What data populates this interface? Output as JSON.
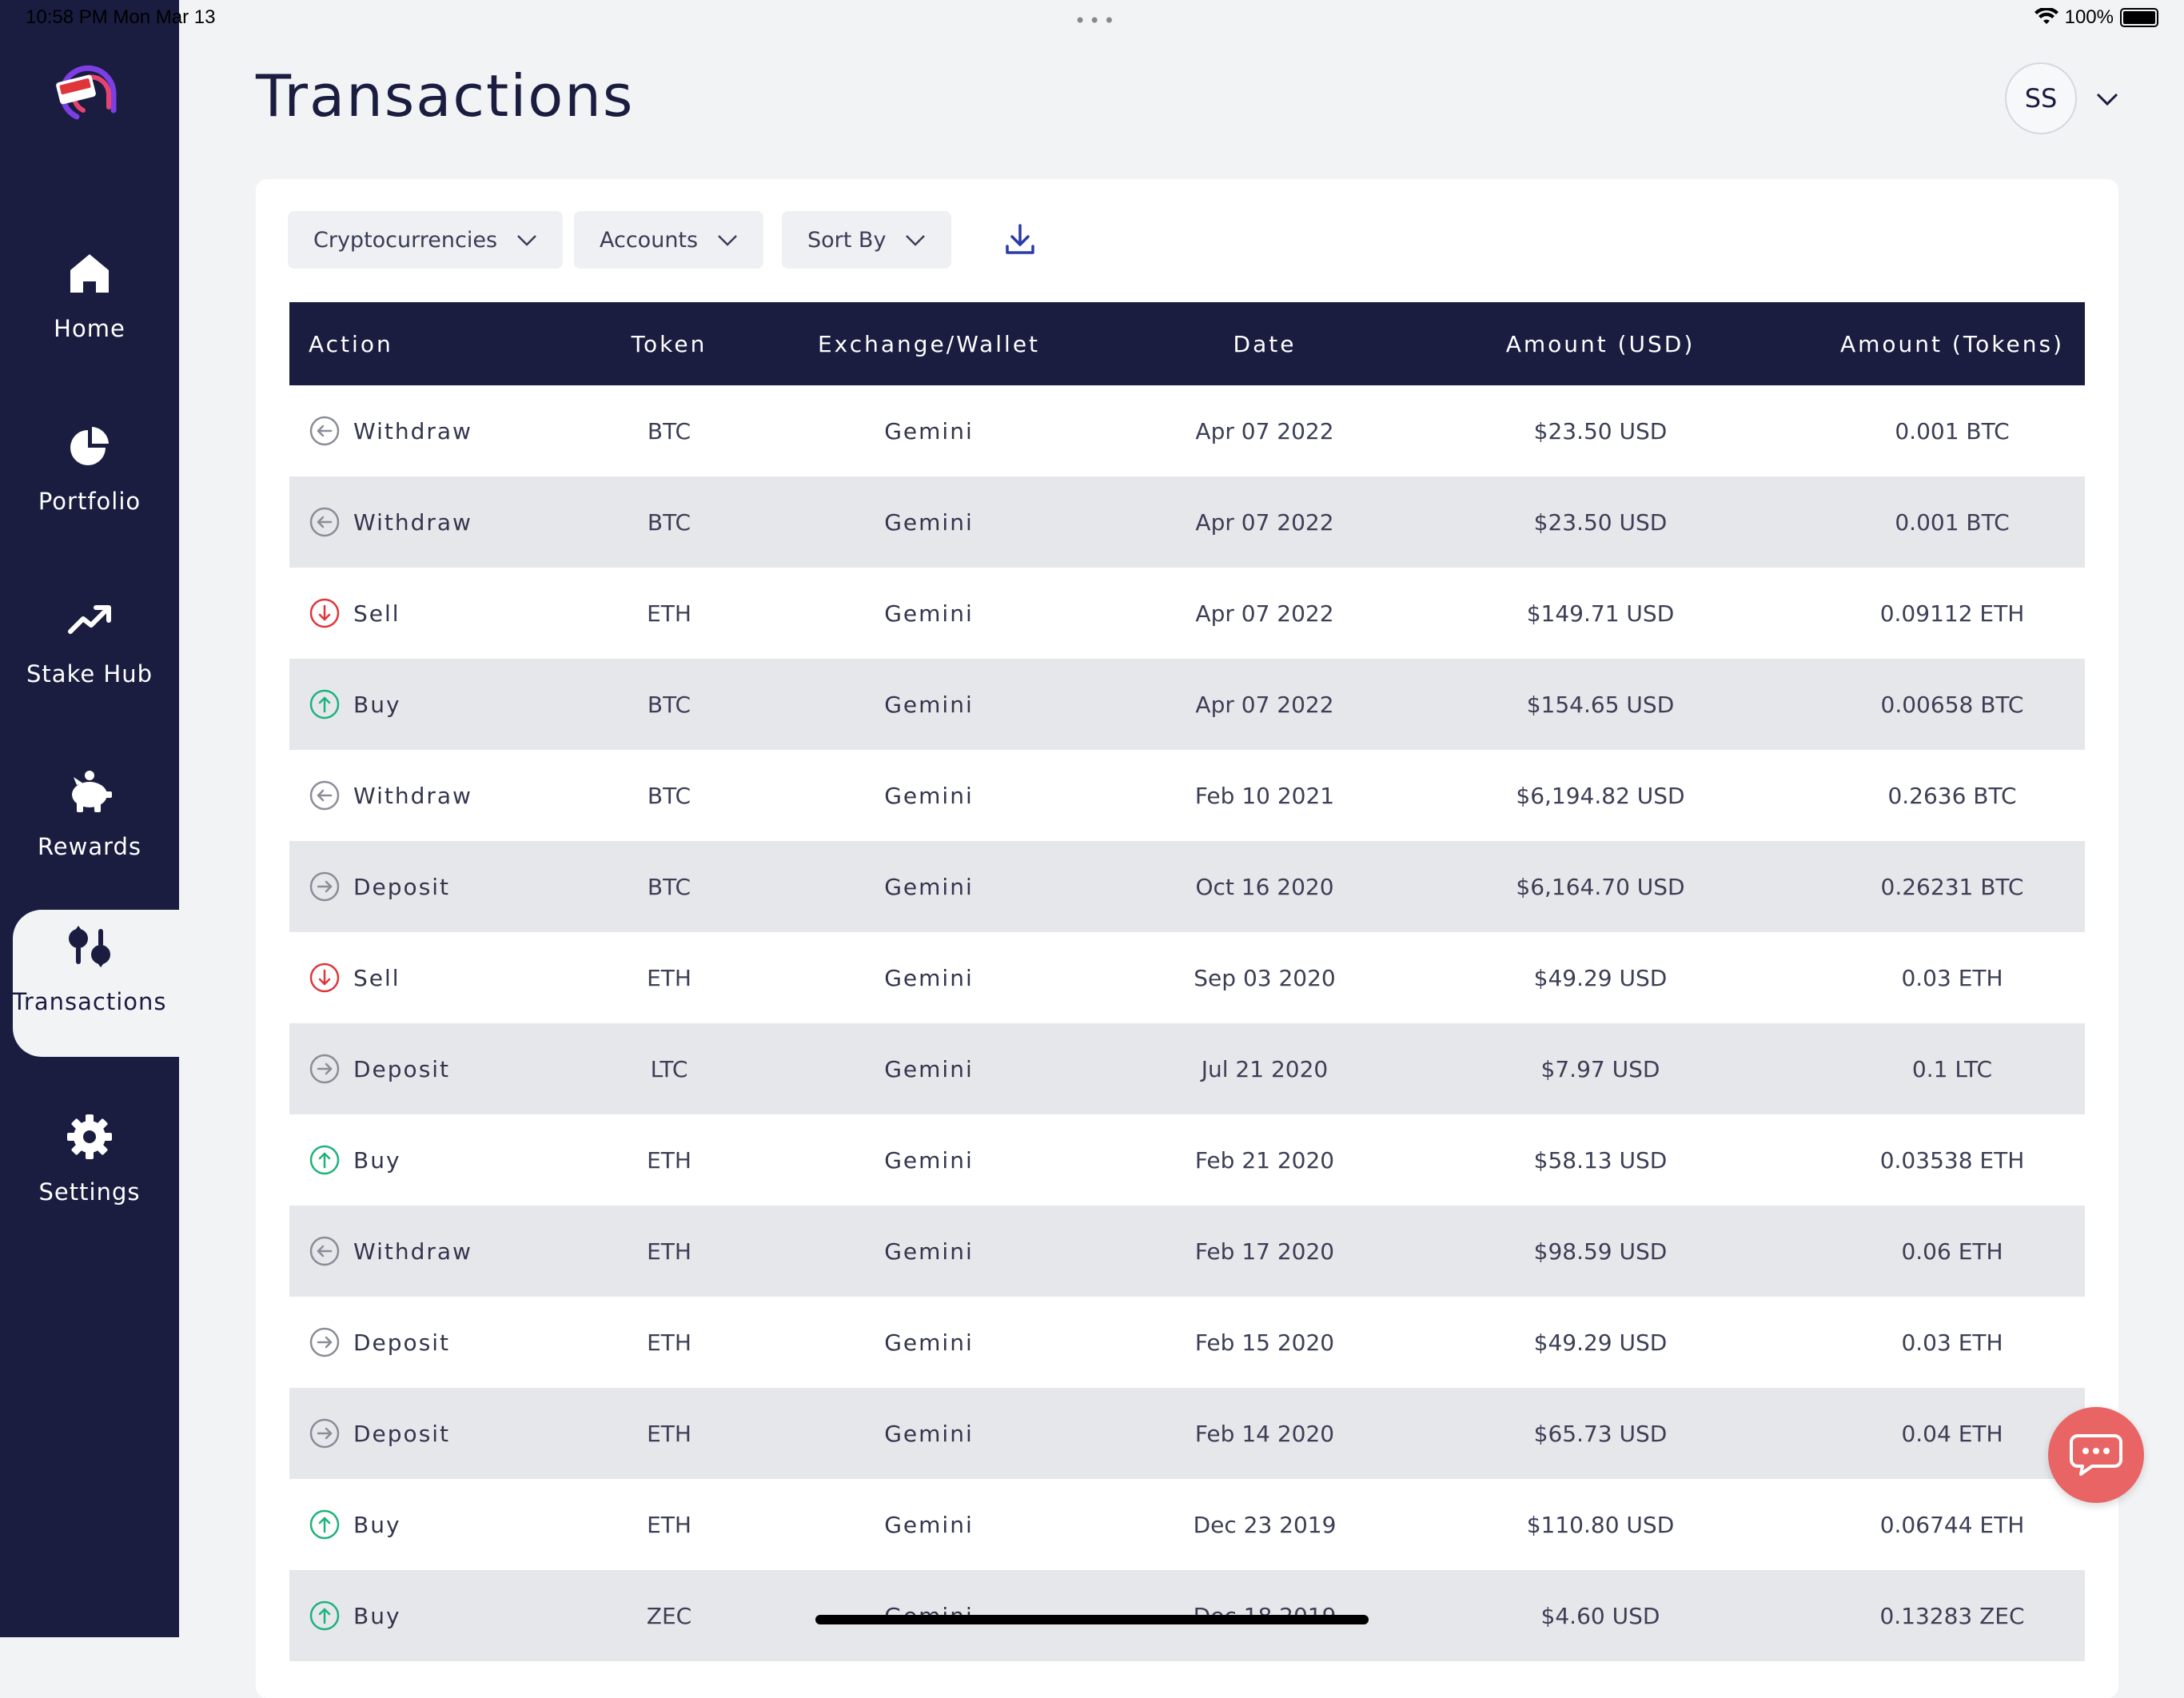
{
  "status_bar": {
    "time": "10:58 PM   Mon Mar 13",
    "battery": "100%"
  },
  "nav": {
    "items": [
      {
        "label": "Home",
        "icon": "home-icon"
      },
      {
        "label": "Portfolio",
        "icon": "pie-chart-icon"
      },
      {
        "label": "Stake Hub",
        "icon": "trend-up-icon"
      },
      {
        "label": "Rewards",
        "icon": "piggy-bank-icon"
      },
      {
        "label": "Transactions",
        "icon": "transactions-icon"
      },
      {
        "label": "Settings",
        "icon": "gear-icon"
      }
    ],
    "active": "Transactions"
  },
  "header": {
    "title": "Transactions",
    "avatar_initials": "SS"
  },
  "filters": {
    "crypto": "Cryptocurrencies",
    "accounts": "Accounts",
    "sort": "Sort By"
  },
  "table": {
    "columns": [
      "Action",
      "Token",
      "Exchange/Wallet",
      "Date",
      "Amount (USD)",
      "Amount (Tokens)"
    ],
    "rows": [
      {
        "action": "Withdraw",
        "token": "BTC",
        "exchange": "Gemini",
        "date": "Apr 07 2022",
        "usd": "$23.50 USD",
        "tokens": "0.001 BTC"
      },
      {
        "action": "Withdraw",
        "token": "BTC",
        "exchange": "Gemini",
        "date": "Apr 07 2022",
        "usd": "$23.50 USD",
        "tokens": "0.001 BTC"
      },
      {
        "action": "Sell",
        "token": "ETH",
        "exchange": "Gemini",
        "date": "Apr 07 2022",
        "usd": "$149.71 USD",
        "tokens": "0.09112 ETH"
      },
      {
        "action": "Buy",
        "token": "BTC",
        "exchange": "Gemini",
        "date": "Apr 07 2022",
        "usd": "$154.65 USD",
        "tokens": "0.00658 BTC"
      },
      {
        "action": "Withdraw",
        "token": "BTC",
        "exchange": "Gemini",
        "date": "Feb 10 2021",
        "usd": "$6,194.82 USD",
        "tokens": "0.2636 BTC"
      },
      {
        "action": "Deposit",
        "token": "BTC",
        "exchange": "Gemini",
        "date": "Oct 16 2020",
        "usd": "$6,164.70 USD",
        "tokens": "0.26231 BTC"
      },
      {
        "action": "Sell",
        "token": "ETH",
        "exchange": "Gemini",
        "date": "Sep 03 2020",
        "usd": "$49.29 USD",
        "tokens": "0.03 ETH"
      },
      {
        "action": "Deposit",
        "token": "LTC",
        "exchange": "Gemini",
        "date": "Jul 21 2020",
        "usd": "$7.97 USD",
        "tokens": "0.1 LTC"
      },
      {
        "action": "Buy",
        "token": "ETH",
        "exchange": "Gemini",
        "date": "Feb 21 2020",
        "usd": "$58.13 USD",
        "tokens": "0.03538 ETH"
      },
      {
        "action": "Withdraw",
        "token": "ETH",
        "exchange": "Gemini",
        "date": "Feb 17 2020",
        "usd": "$98.59 USD",
        "tokens": "0.06 ETH"
      },
      {
        "action": "Deposit",
        "token": "ETH",
        "exchange": "Gemini",
        "date": "Feb 15 2020",
        "usd": "$49.29 USD",
        "tokens": "0.03 ETH"
      },
      {
        "action": "Deposit",
        "token": "ETH",
        "exchange": "Gemini",
        "date": "Feb 14 2020",
        "usd": "$65.73 USD",
        "tokens": "0.04 ETH"
      },
      {
        "action": "Buy",
        "token": "ETH",
        "exchange": "Gemini",
        "date": "Dec 23 2019",
        "usd": "$110.80 USD",
        "tokens": "0.06744 ETH"
      },
      {
        "action": "Buy",
        "token": "ZEC",
        "exchange": "Gemini",
        "date": "Dec 18 2019",
        "usd": "$4.60 USD",
        "tokens": "0.13283 ZEC"
      }
    ]
  },
  "colors": {
    "sidebar": "#1a1d40",
    "buy": "#1db27a",
    "sell": "#e0353a",
    "neutral": "#8a8c98",
    "chat": "#e96565"
  }
}
